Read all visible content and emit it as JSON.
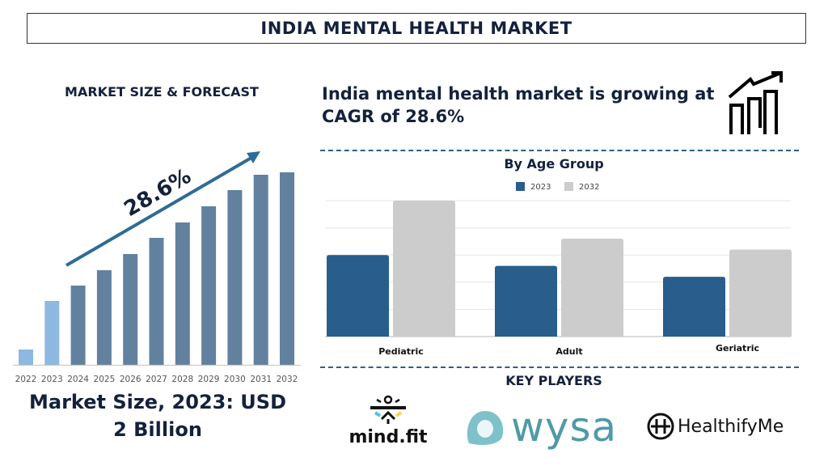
{
  "header": {
    "title": "INDIA MENTAL HEALTH MARKET"
  },
  "left": {
    "heading": "MARKET SIZE & FORECAST",
    "cagr_label": "28.6%",
    "caption_line1": "Market Size, 2023: USD",
    "caption_line2": "2 Billion"
  },
  "right": {
    "cagr_text": "India mental health market is growing at CAGR of 28.6%",
    "icon": "growth-chart-icon",
    "key_players_title": "KEY PLAYERS",
    "players": [
      {
        "name": "mind.fit"
      },
      {
        "name": "wysa"
      },
      {
        "name": "HealthifyMe"
      }
    ]
  },
  "chart_data": [
    {
      "type": "bar",
      "title": "",
      "categories": [
        "2022",
        "2023",
        "2024",
        "2025",
        "2026",
        "2027",
        "2028",
        "2029",
        "2030",
        "2031",
        "2032"
      ],
      "values": [
        19,
        79,
        98,
        117,
        137,
        157,
        176,
        196,
        216,
        235,
        238
      ],
      "colors": {
        "historical": "#8db8e0",
        "forecast": "#62819f"
      },
      "highlighted": [
        "2022",
        "2023"
      ],
      "grid": false,
      "annotation": "28.6%"
    },
    {
      "type": "bar",
      "title": "By Age Group",
      "categories": [
        "Pediatric",
        "Adult",
        "Geriatric"
      ],
      "series": [
        {
          "name": "2023",
          "values": [
            3.0,
            2.6,
            2.2
          ],
          "color": "#285d8c"
        },
        {
          "name": "2032",
          "values": [
            5.0,
            3.6,
            3.2
          ],
          "color": "#cccccc"
        }
      ],
      "ylim": [
        0,
        5
      ],
      "grid": true,
      "legend": "top"
    }
  ]
}
